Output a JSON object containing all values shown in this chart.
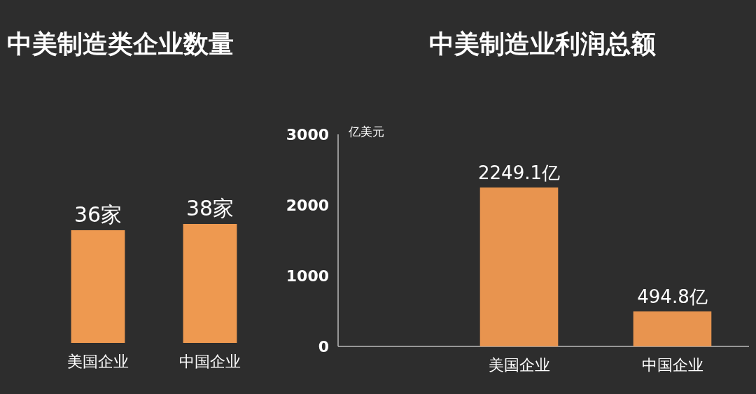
{
  "chart_data": [
    {
      "type": "bar",
      "title": "中美制造类企业数量",
      "categories": [
        "美国企业",
        "中国企业"
      ],
      "values": [
        36,
        38
      ],
      "value_labels": [
        "36家",
        "38家"
      ],
      "color": "#ee9950"
    },
    {
      "type": "bar",
      "title": "中美制造业利润总额",
      "ylabel": "亿美元",
      "categories": [
        "美国企业",
        "中国企业"
      ],
      "values": [
        2249.1,
        494.8
      ],
      "value_labels": [
        "2249.1亿",
        "494.8亿"
      ],
      "color": "#e8944f",
      "ylim": [
        0,
        3000
      ],
      "yticks": [
        0,
        1000,
        2000,
        3000
      ]
    }
  ]
}
